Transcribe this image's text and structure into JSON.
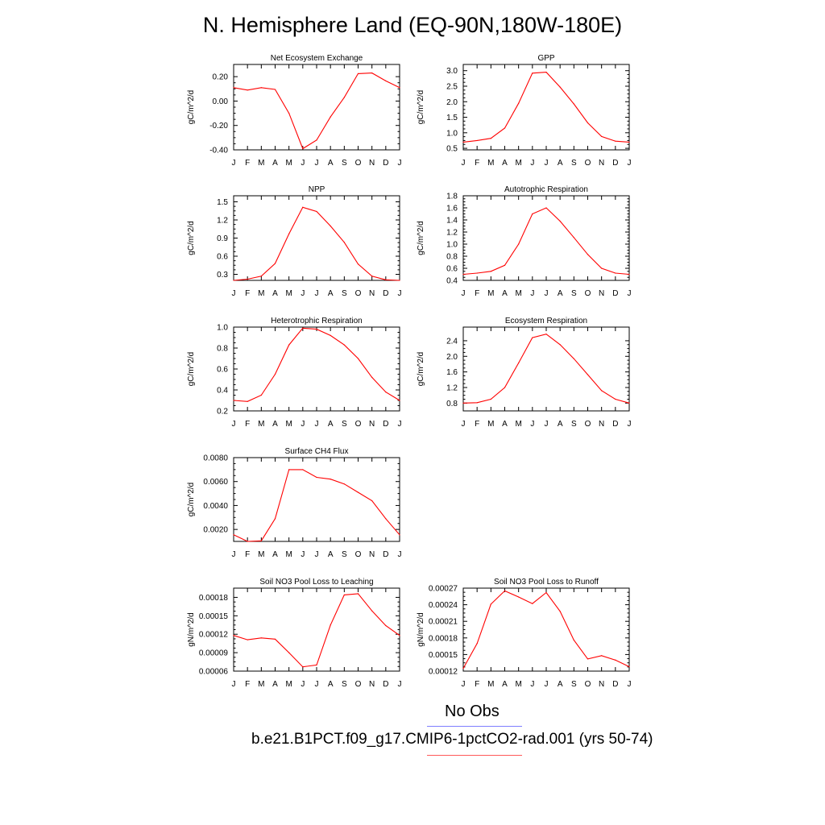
{
  "figure": {
    "title": "N. Hemisphere Land (EQ-90N,180W-180E)",
    "legend": {
      "obs_label": "No Obs",
      "case_label": "b.e21.B1PCT.f09_g17.CMIP6-1pctCO2-rad.001 (yrs 50-74)",
      "obs_color": "#7f7fff",
      "case_color": "#ff0000"
    }
  },
  "chart_data": [
    {
      "type": "line",
      "title": "Net Ecosystem Exchange",
      "ylabel": "gC/m^2/d",
      "categories": [
        "J",
        "F",
        "M",
        "A",
        "M",
        "J",
        "J",
        "A",
        "S",
        "O",
        "N",
        "D",
        "J"
      ],
      "values": [
        0.11,
        0.09,
        0.11,
        0.095,
        -0.1,
        -0.39,
        -0.32,
        -0.13,
        0.03,
        0.225,
        0.23,
        0.165,
        0.11
      ],
      "ylim": [
        -0.4,
        0.3
      ],
      "yticks": [
        -0.4,
        -0.2,
        0.0,
        0.2
      ],
      "ytick_labels": [
        "-0.40",
        "-0.20",
        "0.00",
        "0.20"
      ],
      "color": "#ff0000"
    },
    {
      "type": "line",
      "title": "GPP",
      "ylabel": "gC/m^2/d",
      "categories": [
        "J",
        "F",
        "M",
        "A",
        "M",
        "J",
        "J",
        "A",
        "S",
        "O",
        "N",
        "D",
        "J"
      ],
      "values": [
        0.7,
        0.75,
        0.82,
        1.15,
        1.95,
        2.92,
        2.95,
        2.47,
        1.93,
        1.32,
        0.88,
        0.73,
        0.7
      ],
      "ylim": [
        0.45,
        3.2
      ],
      "yticks": [
        0.5,
        1.0,
        1.5,
        2.0,
        2.5,
        3.0
      ],
      "ytick_labels": [
        "0.5",
        "1.0",
        "1.5",
        "2.0",
        "2.5",
        "3.0"
      ],
      "color": "#ff0000"
    },
    {
      "type": "line",
      "title": "NPP",
      "ylabel": "gC/m^2/d",
      "categories": [
        "J",
        "F",
        "M",
        "A",
        "M",
        "J",
        "J",
        "A",
        "S",
        "O",
        "N",
        "D",
        "J"
      ],
      "values": [
        0.2,
        0.22,
        0.27,
        0.48,
        0.97,
        1.41,
        1.34,
        1.1,
        0.83,
        0.47,
        0.27,
        0.21,
        0.2
      ],
      "ylim": [
        0.2,
        1.6
      ],
      "yticks": [
        0.3,
        0.6,
        0.9,
        1.2,
        1.5
      ],
      "ytick_labels": [
        "0.3",
        "0.6",
        "0.9",
        "1.2",
        "1.5"
      ],
      "color": "#ff0000"
    },
    {
      "type": "line",
      "title": "Autotrophic Respiration",
      "ylabel": "gC/m^2/d",
      "categories": [
        "J",
        "F",
        "M",
        "A",
        "M",
        "J",
        "J",
        "A",
        "S",
        "O",
        "N",
        "D",
        "J"
      ],
      "values": [
        0.5,
        0.52,
        0.55,
        0.65,
        1.0,
        1.5,
        1.6,
        1.38,
        1.11,
        0.83,
        0.6,
        0.52,
        0.5
      ],
      "ylim": [
        0.4,
        1.8
      ],
      "yticks": [
        0.4,
        0.6,
        0.8,
        1.0,
        1.2,
        1.4,
        1.6,
        1.8
      ],
      "ytick_labels": [
        "0.4",
        "0.6",
        "0.8",
        "1.0",
        "1.2",
        "1.4",
        "1.6",
        "1.8"
      ],
      "color": "#ff0000"
    },
    {
      "type": "line",
      "title": "Heterotrophic Respiration",
      "ylabel": "gC/m^2/d",
      "categories": [
        "J",
        "F",
        "M",
        "A",
        "M",
        "J",
        "J",
        "A",
        "S",
        "O",
        "N",
        "D",
        "J"
      ],
      "values": [
        0.3,
        0.29,
        0.35,
        0.55,
        0.83,
        0.99,
        0.98,
        0.92,
        0.83,
        0.7,
        0.52,
        0.38,
        0.3
      ],
      "ylim": [
        0.2,
        1.0
      ],
      "yticks": [
        0.2,
        0.4,
        0.6,
        0.8,
        1.0
      ],
      "ytick_labels": [
        "0.2",
        "0.4",
        "0.6",
        "0.8",
        "1.0"
      ],
      "color": "#ff0000"
    },
    {
      "type": "line",
      "title": "Ecosystem Respiration",
      "ylabel": "gC/m^2/d",
      "categories": [
        "J",
        "F",
        "M",
        "A",
        "M",
        "J",
        "J",
        "A",
        "S",
        "O",
        "N",
        "D",
        "J"
      ],
      "values": [
        0.8,
        0.81,
        0.9,
        1.2,
        1.83,
        2.48,
        2.57,
        2.3,
        1.94,
        1.53,
        1.12,
        0.9,
        0.8
      ],
      "ylim": [
        0.6,
        2.75
      ],
      "yticks": [
        0.8,
        1.2,
        1.6,
        2.0,
        2.4
      ],
      "ytick_labels": [
        "0.8",
        "1.2",
        "1.6",
        "2.0",
        "2.4"
      ],
      "color": "#ff0000"
    },
    {
      "type": "line",
      "title": "Surface CH4 Flux",
      "ylabel": "gC/m^2/d",
      "categories": [
        "J",
        "F",
        "M",
        "A",
        "M",
        "J",
        "J",
        "A",
        "S",
        "O",
        "N",
        "D",
        "J"
      ],
      "values": [
        0.00155,
        0.001,
        0.00105,
        0.0029,
        0.007,
        0.007,
        0.00635,
        0.0062,
        0.0058,
        0.0051,
        0.0044,
        0.0029,
        0.00155
      ],
      "ylim": [
        0.001,
        0.008
      ],
      "yticks": [
        0.002,
        0.004,
        0.006,
        0.008
      ],
      "ytick_labels": [
        "0.0020",
        "0.0040",
        "0.0060",
        "0.0080"
      ],
      "color": "#ff0000"
    },
    {
      "type": "line",
      "title": "Soil NO3 Pool Loss to Leaching",
      "ylabel": "gN/m^2/d",
      "categories": [
        "J",
        "F",
        "M",
        "A",
        "M",
        "J",
        "J",
        "A",
        "S",
        "O",
        "N",
        "D",
        "J"
      ],
      "values": [
        0.000118,
        0.000111,
        0.000114,
        0.000112,
        9e-05,
        6.7e-05,
        7e-05,
        0.000135,
        0.000184,
        0.000186,
        0.000158,
        0.000134,
        0.000118
      ],
      "ylim": [
        6e-05,
        0.000195
      ],
      "yticks": [
        6e-05,
        9e-05,
        0.00012,
        0.00015,
        0.00018
      ],
      "ytick_labels": [
        "0.00006",
        "0.00009",
        "0.00012",
        "0.00015",
        "0.00018"
      ],
      "color": "#ff0000"
    },
    {
      "type": "line",
      "title": "Soil NO3 Pool Loss to Runoff",
      "ylabel": "gN/m^2/d",
      "categories": [
        "J",
        "F",
        "M",
        "A",
        "M",
        "J",
        "J",
        "A",
        "S",
        "O",
        "N",
        "D",
        "J"
      ],
      "values": [
        0.000125,
        0.00017,
        0.000241,
        0.000265,
        0.000254,
        0.000242,
        0.000262,
        0.000228,
        0.000176,
        0.000142,
        0.000148,
        0.00014,
        0.000128
      ],
      "ylim": [
        0.00012,
        0.00027
      ],
      "yticks": [
        0.00012,
        0.00015,
        0.00018,
        0.00021,
        0.00024,
        0.00027
      ],
      "ytick_labels": [
        "0.00012",
        "0.00015",
        "0.00018",
        "0.00021",
        "0.00024",
        "0.00027"
      ],
      "color": "#ff0000"
    }
  ]
}
